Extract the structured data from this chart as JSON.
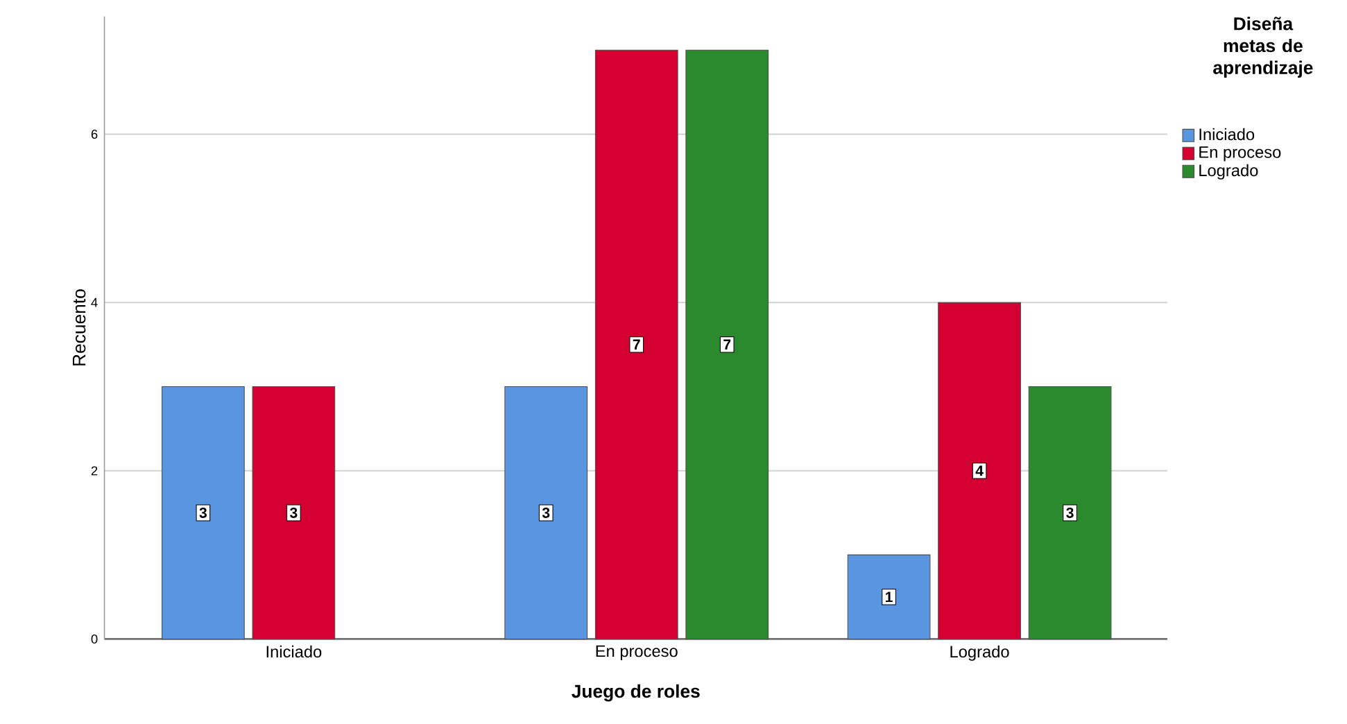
{
  "chart_data": {
    "type": "bar",
    "xlabel": "Juego de roles",
    "ylabel": "Recuento",
    "legend_title": "Diseña metas de aprendizaje",
    "categories": [
      "Iniciado",
      "En proceso",
      "Logrado"
    ],
    "series": [
      {
        "name": "Iniciado",
        "color": "#5a96e0",
        "values": [
          3,
          3,
          1
        ]
      },
      {
        "name": "En proceso",
        "color": "#d50032",
        "values": [
          3,
          7,
          4
        ]
      },
      {
        "name": "Logrado",
        "color": "#2b8a2e",
        "values": [
          null,
          7,
          3
        ]
      }
    ],
    "ylim": [
      0,
      7.4
    ],
    "yticks": [
      0,
      2,
      4,
      6
    ],
    "grid": "y",
    "legend": "top right",
    "data_labels": true
  }
}
